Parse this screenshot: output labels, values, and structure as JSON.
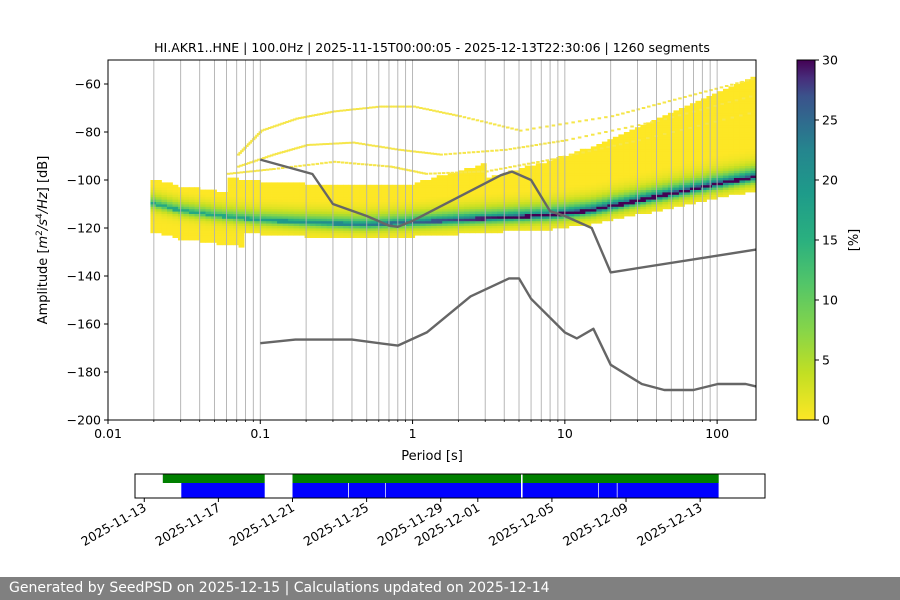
{
  "chart_data": [
    {
      "type": "heatmap",
      "title": "HI.AKR1..HNE | 100.0Hz | 2025-11-15T00:00:05 - 2025-12-13T22:30:06 | 1260 segments",
      "xlabel": "Period [s]",
      "ylabel": "Amplitude [m²/s⁴/Hz] [dB]",
      "x_scale": "log",
      "xlim": [
        0.01,
        180
      ],
      "ylim": [
        -200,
        -50
      ],
      "xticks": [
        0.01,
        0.1,
        1,
        10,
        100
      ],
      "xtick_labels": [
        "0.01",
        "0.1",
        "1",
        "10",
        "100"
      ],
      "yticks": [
        -200,
        -180,
        -160,
        -140,
        -120,
        -100,
        -80,
        -60
      ],
      "ytick_labels": [
        "−200",
        "−180",
        "−160",
        "−140",
        "−120",
        "−100",
        "−80",
        "−60"
      ],
      "grid": true,
      "colorbar": {
        "label": "[%]",
        "range": [
          0,
          30
        ],
        "ticks": [
          0,
          5,
          10,
          15,
          20,
          25,
          30
        ],
        "colormap": [
          "#fde725",
          "#5ec962",
          "#21918c",
          "#3b528b",
          "#440154"
        ]
      },
      "mode_curve": [
        {
          "x": 0.019,
          "y": -110
        },
        {
          "x": 0.03,
          "y": -113
        },
        {
          "x": 0.05,
          "y": -115
        },
        {
          "x": 0.1,
          "y": -117
        },
        {
          "x": 0.2,
          "y": -118
        },
        {
          "x": 0.5,
          "y": -119
        },
        {
          "x": 1,
          "y": -118
        },
        {
          "x": 2,
          "y": -117
        },
        {
          "x": 4,
          "y": -116
        },
        {
          "x": 8,
          "y": -115
        },
        {
          "x": 15,
          "y": -113
        },
        {
          "x": 30,
          "y": -109
        },
        {
          "x": 60,
          "y": -105
        },
        {
          "x": 100,
          "y": -102
        },
        {
          "x": 180,
          "y": -99
        }
      ],
      "series": [
        {
          "name": "",
          "color": "#666666",
          "points": [
            {
              "x": 0.1,
              "y": -91.5
            },
            {
              "x": 0.22,
              "y": -97.5
            },
            {
              "x": 0.3,
              "y": -110
            },
            {
              "x": 0.5,
              "y": -115
            },
            {
              "x": 0.7,
              "y": -119
            },
            {
              "x": 0.8,
              "y": -119.5
            },
            {
              "x": 1.0,
              "y": -117
            },
            {
              "x": 3.8,
              "y": -98
            },
            {
              "x": 4.5,
              "y": -96.5
            },
            {
              "x": 6.0,
              "y": -100
            },
            {
              "x": 8.0,
              "y": -113
            },
            {
              "x": 10,
              "y": -115
            },
            {
              "x": 15,
              "y": -120
            },
            {
              "x": 20,
              "y": -138.5
            },
            {
              "x": 180,
              "y": -129
            }
          ]
        },
        {
          "name": "",
          "color": "#666666",
          "points": [
            {
              "x": 0.1,
              "y": -168
            },
            {
              "x": 0.17,
              "y": -166.5
            },
            {
              "x": 0.4,
              "y": -166.5
            },
            {
              "x": 0.8,
              "y": -169
            },
            {
              "x": 1.24,
              "y": -163.5
            },
            {
              "x": 2.4,
              "y": -148.5
            },
            {
              "x": 4.3,
              "y": -141
            },
            {
              "x": 5.0,
              "y": -141
            },
            {
              "x": 6.0,
              "y": -149.5
            },
            {
              "x": 10,
              "y": -163.5
            },
            {
              "x": 12,
              "y": -166
            },
            {
              "x": 15.4,
              "y": -162
            },
            {
              "x": 20,
              "y": -177
            },
            {
              "x": 32,
              "y": -185
            },
            {
              "x": 45,
              "y": -187.5
            },
            {
              "x": 70,
              "y": -187.5
            },
            {
              "x": 101,
              "y": -185
            },
            {
              "x": 154,
              "y": -185
            },
            {
              "x": 180,
              "y": -186
            }
          ]
        }
      ]
    },
    {
      "type": "bar",
      "subtype": "timeline",
      "x_type": "date",
      "xlim": [
        "2025-11-12T12:00",
        "2025-12-16T12:00"
      ],
      "xticks": [
        "2025-11-13",
        "2025-11-17",
        "2025-11-21",
        "2025-11-25",
        "2025-11-29",
        "2025-12-01",
        "2025-12-05",
        "2025-12-09",
        "2025-12-13"
      ],
      "xtick_labels": [
        "2025-11-13",
        "2025-11-17",
        "2025-11-21",
        "2025-11-25",
        "2025-11-29",
        "2025-12-01",
        "2025-12-05",
        "2025-12-09",
        "2025-12-13"
      ],
      "series": [
        {
          "name": "",
          "color": "#008000",
          "intervals": [
            [
              "2025-11-14T00:00",
              "2025-11-19T12:00"
            ],
            [
              "2025-11-21T00:00",
              "2025-12-03T08:00"
            ],
            [
              "2025-12-03T10:00",
              "2025-12-14T00:00"
            ]
          ]
        },
        {
          "name": "",
          "color": "#0000ff",
          "intervals": [
            [
              "2025-11-15T00:00",
              "2025-11-19T12:00"
            ],
            [
              "2025-11-21T00:00",
              "2025-11-24T00:00"
            ],
            [
              "2025-11-24T01:00",
              "2025-11-26T00:00"
            ],
            [
              "2025-11-26T01:00",
              "2025-12-03T08:00"
            ],
            [
              "2025-12-03T10:00",
              "2025-12-07T12:00"
            ],
            [
              "2025-12-07T13:00",
              "2025-12-08T12:00"
            ],
            [
              "2025-12-08T13:00",
              "2025-12-14T00:00"
            ]
          ]
        }
      ]
    }
  ],
  "footer": {
    "text": "Generated by SeedPSD on 2025-12-15 | Calculations updated on 2025-12-14"
  }
}
